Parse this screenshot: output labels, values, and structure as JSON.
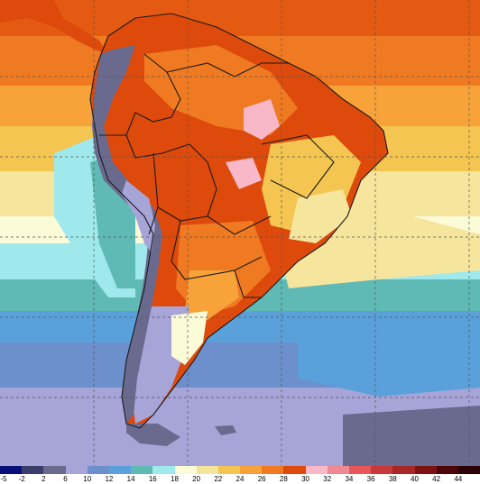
{
  "legend": {
    "ticks": [
      "-5",
      "-2",
      "2",
      "6",
      "10",
      "12",
      "14",
      "16",
      "18",
      "20",
      "22",
      "24",
      "26",
      "28",
      "30",
      "32",
      "34",
      "36",
      "38",
      "40",
      "42",
      "44"
    ],
    "colors": [
      "#07107a",
      "#3b3d6b",
      "#6a6a8f",
      "#a7a4d8",
      "#6d8fcc",
      "#5aa0da",
      "#5fb9b5",
      "#9fe9ec",
      "#fbfbd8",
      "#f5e59d",
      "#f4c550",
      "#f8a23a",
      "#f07a22",
      "#dd4a0c",
      "#f8b8c8",
      "#f08a92",
      "#e85858",
      "#c83a3a",
      "#a92626",
      "#7d1212",
      "#4d0608",
      "#2a0208"
    ]
  },
  "map": {
    "palette": {
      "ocean_cold": "#a7a4d8",
      "ocean_cool": "#6d8fcc",
      "ocean_mid": "#5aa0da",
      "ocean_teal": "#5fb9b5",
      "ocean_mild": "#9fe9ec",
      "ocean_warm": "#f5e59d",
      "ocean_warmer": "#f4c550",
      "ocean_hot": "#f07a22",
      "land_hot": "#dd4a0c",
      "andes": "#6a6a8f",
      "border": "#1a1a1a",
      "grid": "#555555"
    }
  }
}
